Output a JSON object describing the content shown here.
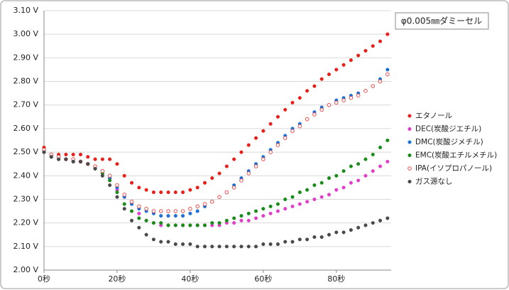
{
  "chart_data": {
    "type": "scatter",
    "annotation": "φ0.005㎜ダミーセル",
    "x": [
      0,
      2,
      4,
      6,
      8,
      10,
      12,
      14,
      16,
      18,
      20,
      22,
      24,
      26,
      28,
      30,
      32,
      34,
      36,
      38,
      40,
      42,
      44,
      46,
      48,
      50,
      52,
      54,
      56,
      58,
      60,
      62,
      64,
      66,
      68,
      70,
      72,
      74,
      76,
      78,
      80,
      82,
      84,
      86,
      88,
      90,
      92,
      94
    ],
    "xlim": [
      0,
      95
    ],
    "xticks": [
      {
        "value": 0,
        "label": "0秒"
      },
      {
        "value": 20,
        "label": "20秒"
      },
      {
        "value": 40,
        "label": "40秒"
      },
      {
        "value": 60,
        "label": "60秒"
      },
      {
        "value": 80,
        "label": "80秒"
      }
    ],
    "ylim": [
      2.0,
      3.1
    ],
    "yticks": [
      {
        "value": 2.0,
        "label": "2.00 V"
      },
      {
        "value": 2.1,
        "label": "2.10 V"
      },
      {
        "value": 2.2,
        "label": "2.20 V"
      },
      {
        "value": 2.3,
        "label": "2.30 V"
      },
      {
        "value": 2.4,
        "label": "2.40 V"
      },
      {
        "value": 2.5,
        "label": "2.50 V"
      },
      {
        "value": 2.6,
        "label": "2.60 V"
      },
      {
        "value": 2.7,
        "label": "2.70 V"
      },
      {
        "value": 2.8,
        "label": "2.80 V"
      },
      {
        "value": 2.9,
        "label": "2.90 V"
      },
      {
        "value": 3.0,
        "label": "3.00 V"
      },
      {
        "value": 3.1,
        "label": "3.10 V"
      }
    ],
    "grid": true,
    "legend": "right",
    "series": [
      {
        "name": "エタノール",
        "color": "#e8201c",
        "marker": "filled",
        "values": [
          2.52,
          2.49,
          2.49,
          2.49,
          2.49,
          2.49,
          2.48,
          2.47,
          2.47,
          2.47,
          2.45,
          2.4,
          2.37,
          2.35,
          2.34,
          2.33,
          2.33,
          2.33,
          2.33,
          2.33,
          2.34,
          2.35,
          2.37,
          2.39,
          2.41,
          2.44,
          2.47,
          2.5,
          2.53,
          2.56,
          2.59,
          2.62,
          2.65,
          2.68,
          2.71,
          2.73,
          2.76,
          2.78,
          2.81,
          2.83,
          2.85,
          2.87,
          2.89,
          2.91,
          2.93,
          2.95,
          2.97,
          3.0
        ]
      },
      {
        "name": "DEC(炭酸ジエチル)",
        "color": "#e040c8",
        "marker": "filled",
        "values": [
          2.5,
          2.48,
          2.47,
          2.47,
          2.46,
          2.46,
          2.45,
          2.43,
          2.42,
          2.39,
          2.34,
          2.31,
          2.28,
          2.24,
          2.21,
          2.2,
          2.19,
          2.19,
          2.19,
          2.19,
          2.19,
          2.19,
          2.19,
          2.19,
          2.19,
          2.2,
          2.2,
          2.21,
          2.21,
          2.22,
          2.23,
          2.24,
          2.25,
          2.26,
          2.27,
          2.28,
          2.29,
          2.3,
          2.31,
          2.32,
          2.34,
          2.35,
          2.37,
          2.38,
          2.4,
          2.42,
          2.44,
          2.46
        ]
      },
      {
        "name": "DMC(炭酸ジメチル)",
        "color": "#1f6fd6",
        "marker": "filled",
        "values": [
          2.51,
          2.49,
          2.48,
          2.47,
          2.47,
          2.46,
          2.45,
          2.44,
          2.42,
          2.39,
          2.35,
          2.31,
          2.28,
          2.26,
          2.25,
          2.24,
          2.23,
          2.23,
          2.23,
          2.23,
          2.24,
          2.25,
          2.27,
          2.29,
          2.31,
          2.33,
          2.36,
          2.39,
          2.42,
          2.45,
          2.48,
          2.51,
          2.54,
          2.57,
          2.6,
          2.62,
          2.64,
          2.67,
          2.69,
          2.7,
          2.72,
          2.73,
          2.74,
          2.75,
          2.76,
          2.78,
          2.81,
          2.85
        ]
      },
      {
        "name": "EMC(炭酸エチルメチル)",
        "color": "#1a8c1a",
        "marker": "filled",
        "values": [
          2.5,
          2.48,
          2.47,
          2.47,
          2.46,
          2.46,
          2.45,
          2.43,
          2.41,
          2.38,
          2.33,
          2.28,
          2.25,
          2.22,
          2.21,
          2.2,
          2.2,
          2.19,
          2.19,
          2.19,
          2.19,
          2.19,
          2.19,
          2.2,
          2.2,
          2.21,
          2.22,
          2.23,
          2.24,
          2.25,
          2.26,
          2.27,
          2.28,
          2.3,
          2.31,
          2.33,
          2.34,
          2.36,
          2.37,
          2.39,
          2.4,
          2.42,
          2.44,
          2.45,
          2.47,
          2.49,
          2.52,
          2.55
        ]
      },
      {
        "name": "IPA(イソプロパノール)",
        "color": "#e85050",
        "marker": "hollow",
        "values": [
          2.51,
          2.49,
          2.48,
          2.47,
          2.47,
          2.46,
          2.45,
          2.44,
          2.42,
          2.4,
          2.36,
          2.32,
          2.29,
          2.27,
          2.26,
          2.25,
          2.25,
          2.25,
          2.25,
          2.25,
          2.26,
          2.27,
          2.28,
          2.29,
          2.31,
          2.33,
          2.35,
          2.38,
          2.41,
          2.44,
          2.47,
          2.5,
          2.53,
          2.56,
          2.59,
          2.61,
          2.64,
          2.66,
          2.68,
          2.7,
          2.71,
          2.72,
          2.73,
          2.74,
          2.76,
          2.78,
          2.8,
          2.83
        ]
      },
      {
        "name": "ガス源なし",
        "color": "#4a4a4a",
        "marker": "filled",
        "values": [
          2.5,
          2.48,
          2.47,
          2.47,
          2.46,
          2.46,
          2.45,
          2.43,
          2.4,
          2.36,
          2.31,
          2.26,
          2.21,
          2.18,
          2.15,
          2.13,
          2.12,
          2.12,
          2.11,
          2.11,
          2.11,
          2.1,
          2.1,
          2.1,
          2.1,
          2.1,
          2.1,
          2.1,
          2.1,
          2.1,
          2.11,
          2.11,
          2.11,
          2.12,
          2.12,
          2.13,
          2.13,
          2.14,
          2.14,
          2.15,
          2.16,
          2.16,
          2.17,
          2.18,
          2.19,
          2.2,
          2.21,
          2.22
        ]
      }
    ]
  }
}
